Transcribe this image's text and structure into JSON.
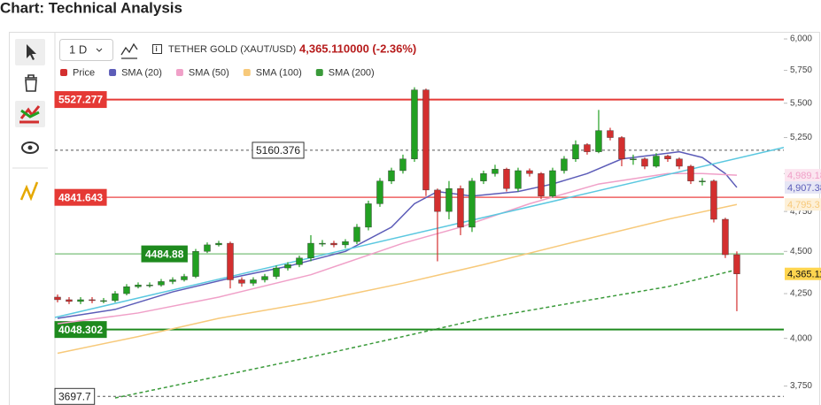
{
  "header": {
    "title": "Chart: Technical Analysis"
  },
  "toolbar": {
    "interval": "1 D",
    "symbol": "TETHER GOLD (XAUT/USD)",
    "price": "4,365.110000 (-2.36%)"
  },
  "chart_data": {
    "type": "candlestick",
    "log_scale": true,
    "ylim": [
      3655,
      6058
    ],
    "yticks": [
      {
        "value": 3750,
        "label": "3,750"
      },
      {
        "value": 4000,
        "label": "4,000"
      },
      {
        "value": 4250,
        "label": "4,250"
      },
      {
        "value": 4500,
        "label": "4,500"
      },
      {
        "value": 4750,
        "label": "4,750"
      },
      {
        "value": 5000,
        "label": "5,000"
      },
      {
        "value": 5250,
        "label": "5,250"
      },
      {
        "value": 5500,
        "label": "5,500"
      },
      {
        "value": 5750,
        "label": "5,750"
      },
      {
        "value": 6000,
        "label": "6,000"
      }
    ],
    "xlim": [
      -0.23,
      63.08
    ],
    "candles": {
      "name": "Price",
      "up_color": "#22a022",
      "down_color": "#d32f2f",
      "last_label": "4,365.11",
      "last_label_color": "#ffd54f",
      "open": [
        4230,
        4215,
        4205,
        4215,
        4210,
        4210,
        4250,
        4290,
        4300,
        4300,
        4320,
        4330,
        4350,
        4500,
        4540,
        4550,
        4330,
        4310,
        4330,
        4350,
        4400,
        4420,
        4460,
        4550,
        4550,
        4540,
        4560,
        4650,
        4800,
        4950,
        5020,
        5100,
        5600,
        4890,
        4750,
        4900,
        4650,
        4950,
        5000,
        5030,
        4900,
        5020,
        5000,
        4850,
        5020,
        5100,
        5200,
        5150,
        5300,
        5250,
        5100,
        5100,
        5050,
        5120,
        5100,
        5050,
        4950,
        4950,
        4700,
        4480
      ],
      "high": [
        4245,
        4230,
        4230,
        4230,
        4225,
        4265,
        4305,
        4315,
        4315,
        4335,
        4345,
        4365,
        4515,
        4555,
        4565,
        4560,
        4345,
        4345,
        4365,
        4415,
        4435,
        4475,
        4600,
        4570,
        4565,
        4575,
        4670,
        4820,
        4970,
        5040,
        5130,
        5620,
        5610,
        4900,
        4950,
        4920,
        4970,
        5020,
        5060,
        5040,
        5040,
        5035,
        5010,
        5040,
        5120,
        5230,
        5210,
        5450,
        5320,
        5260,
        5130,
        5110,
        5140,
        5130,
        5110,
        5060,
        4970,
        4960,
        4710,
        4500
      ],
      "low": [
        4200,
        4190,
        4190,
        4195,
        4195,
        4200,
        4240,
        4280,
        4285,
        4290,
        4305,
        4320,
        4340,
        4490,
        4530,
        4280,
        4290,
        4295,
        4315,
        4335,
        4385,
        4405,
        4440,
        4530,
        4525,
        4520,
        4545,
        4630,
        4780,
        4930,
        5000,
        5080,
        4850,
        4440,
        4700,
        4600,
        4620,
        4930,
        4980,
        4880,
        4880,
        4980,
        4830,
        4840,
        5000,
        5080,
        5130,
        5140,
        5230,
        5050,
        5060,
        5030,
        5040,
        5080,
        5030,
        4930,
        4920,
        4680,
        4460,
        4150
      ],
      "close": [
        4215,
        4205,
        4215,
        4210,
        4210,
        4250,
        4290,
        4300,
        4300,
        4320,
        4330,
        4350,
        4500,
        4540,
        4550,
        4330,
        4310,
        4330,
        4350,
        4400,
        4420,
        4460,
        4550,
        4550,
        4540,
        4560,
        4650,
        4800,
        4950,
        5020,
        5100,
        5600,
        4890,
        4750,
        4900,
        4650,
        4950,
        5000,
        5030,
        4900,
        5020,
        5000,
        4850,
        5020,
        5100,
        5200,
        5150,
        5300,
        5250,
        5100,
        5100,
        5050,
        5120,
        5100,
        5050,
        4950,
        4950,
        4700,
        4480,
        4365.11
      ]
    },
    "series": [
      {
        "name": "SMA (20)",
        "color": "#5c5cb8",
        "label_bg": "#e6e6f5",
        "last_label": "4,907.38",
        "x": [
          0,
          5,
          10,
          15,
          20,
          25,
          29,
          31,
          33,
          36,
          40,
          43,
          46,
          49,
          52,
          54,
          56,
          58,
          59
        ],
        "values": [
          4110,
          4160,
          4260,
          4340,
          4410,
          4500,
          4650,
          4800,
          4880,
          4850,
          4880,
          4930,
          5000,
          5100,
          5130,
          5150,
          5110,
          5000,
          4907.38
        ]
      },
      {
        "name": "SMA (50)",
        "color": "#f0a0c8",
        "label_bg": "#fbe6f0",
        "last_label": "4,989.18",
        "x": [
          0,
          7,
          14,
          22,
          30,
          35,
          41,
          47,
          53,
          56,
          59
        ],
        "values": [
          4080,
          4140,
          4230,
          4360,
          4550,
          4650,
          4800,
          4930,
          5000,
          5000,
          4989.18
        ]
      },
      {
        "name": "SMA (100)",
        "color": "#f7c97a",
        "label_bg": "#fdf0d8",
        "last_label": "4,795.3",
        "x": [
          0,
          7,
          14,
          22,
          30,
          37,
          45,
          53,
          59
        ],
        "values": [
          3920,
          4010,
          4110,
          4200,
          4310,
          4420,
          4560,
          4700,
          4795.3
        ]
      },
      {
        "name": "SMA (200)",
        "color": "#3a9a3a",
        "dashed": true,
        "x": [
          5,
          14,
          22,
          30,
          37,
          45,
          53,
          59
        ],
        "values": [
          3690,
          3800,
          3900,
          4010,
          4110,
          4200,
          4290,
          4390
        ]
      },
      {
        "color": "#5bc8e0",
        "x": [
          -0.23,
          63.08
        ],
        "values": [
          4115,
          5180
        ]
      }
    ],
    "levels": [
      {
        "value": 5527.277,
        "color": "#e53935",
        "label_bg": "#e53935",
        "width": 2
      },
      {
        "value": 5160.376,
        "color": "#555555",
        "label_bg": "#ffffff",
        "dashed": true,
        "width": 1
      },
      {
        "value": 4841.643,
        "color": "#ef6060",
        "label_bg": "#e53935",
        "width": 1.5
      },
      {
        "value": 4484.88,
        "color": "#8fc98f",
        "label_bg": "#1e8a1e",
        "width": 1.5
      },
      {
        "value": 4048.302,
        "color": "#1e8a1e",
        "label_bg": "#1e8a1e",
        "width": 2
      },
      {
        "value": 3697.7,
        "color": "#555555",
        "label_bg": "#ffffff",
        "dashed": true,
        "width": 1
      }
    ]
  }
}
